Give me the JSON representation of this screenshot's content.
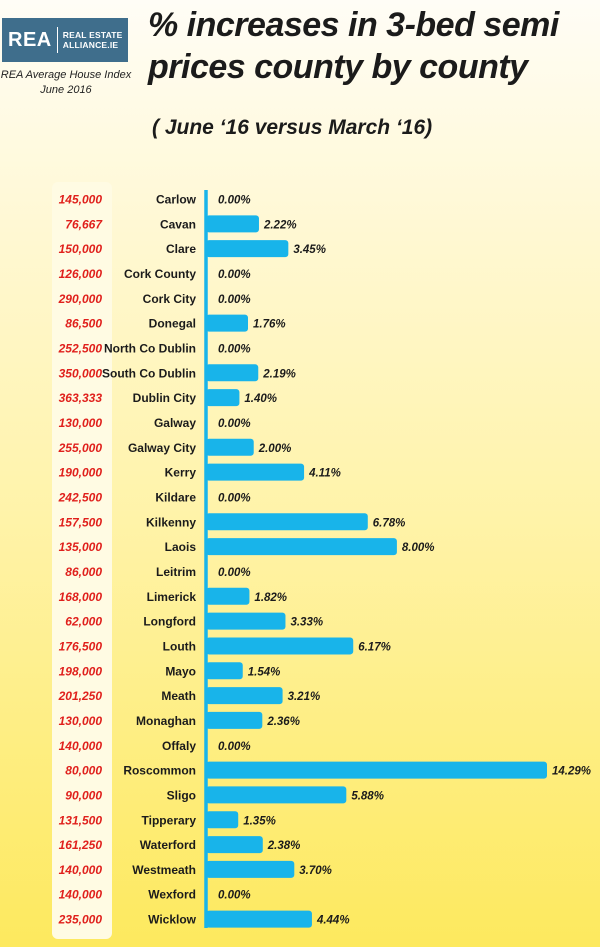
{
  "header": {
    "logo_mark": "REA",
    "logo_line1": "REAL ESTATE",
    "logo_line2": "ALLIANCE.IE",
    "index_line1": "REA Average House Index",
    "index_line2": "June 2016",
    "title_line1": "% increases  in 3-bed semi",
    "title_line2": "prices county by county",
    "subtitle": "( June ‘16 versus March ‘16)"
  },
  "colors": {
    "bar": "#18b4ea",
    "price": "#e0201c",
    "label": "#1b1b1b"
  },
  "chart_data": {
    "type": "bar",
    "orientation": "horizontal",
    "title": "% increases  in 3-bed semi prices county by county",
    "subtitle": "( June ‘16 versus March ‘16)",
    "xlim": [
      0,
      14.29
    ],
    "categories": [
      "Carlow",
      "Cavan",
      "Clare",
      "Cork County",
      "Cork City",
      "Donegal",
      "North Co Dublin",
      "South Co Dublin",
      "Dublin City",
      "Galway",
      "Galway City",
      "Kerry",
      "Kildare",
      "Kilkenny",
      "Laois",
      "Leitrim",
      "Limerick",
      "Longford",
      "Louth",
      "Mayo",
      "Meath",
      "Monaghan",
      "Offaly",
      "Roscommon",
      "Sligo",
      "Tipperary",
      "Waterford",
      "Westmeath",
      "Wexford",
      "Wicklow"
    ],
    "values": [
      0.0,
      2.22,
      3.45,
      0.0,
      0.0,
      1.76,
      0.0,
      2.19,
      1.4,
      0.0,
      2.0,
      4.11,
      0.0,
      6.78,
      8.0,
      0.0,
      1.82,
      3.33,
      6.17,
      1.54,
      3.21,
      2.36,
      0.0,
      14.29,
      5.88,
      1.35,
      2.38,
      3.7,
      0.0,
      4.44
    ],
    "value_labels": [
      "0.00%",
      "2.22%",
      "3.45%",
      "0.00%",
      "0.00%",
      "1.76%",
      "0.00%",
      "2.19%",
      "1.40%",
      "0.00%",
      "2.00%",
      "4.11%",
      "0.00%",
      "6.78%",
      "8.00%",
      "0.00%",
      "1.82%",
      "3.33%",
      "6.17%",
      "1.54%",
      "3.21%",
      "2.36%",
      "0.00%",
      "14.29%",
      "5.88%",
      "1.35%",
      "2.38%",
      "3.70%",
      "0.00%",
      "4.44%"
    ],
    "prices": [
      "145,000",
      "76,667",
      "150,000",
      "126,000",
      "290,000",
      "86,500",
      "252,500",
      "350,000",
      "363,333",
      "130,000",
      "255,000",
      "190,000",
      "242,500",
      "157,500",
      "135,000",
      "86,000",
      "168,000",
      "62,000",
      "176,500",
      "198,000",
      "201,250",
      "130,000",
      "140,000",
      "80,000",
      "90,000",
      "131,500",
      "161,250",
      "140,000",
      "140,000",
      "235,000"
    ]
  }
}
